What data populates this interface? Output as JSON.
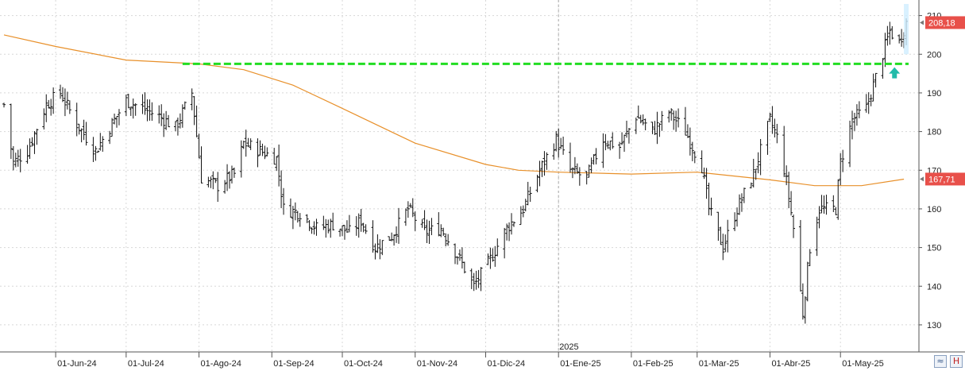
{
  "chart_data": {
    "type": "ohlc",
    "title": "",
    "xlabel": "",
    "ylabel": "",
    "ylim": [
      123,
      213
    ],
    "yticks": [
      130,
      140,
      150,
      160,
      170,
      180,
      190,
      200,
      210
    ],
    "month_ticks": [
      {
        "label": "01-Jun-24",
        "date": "2024-06-01"
      },
      {
        "label": "01-Jul-24",
        "date": "2024-07-01"
      },
      {
        "label": "01-Ago-24",
        "date": "2024-08-01"
      },
      {
        "label": "01-Sep-24",
        "date": "2024-09-01"
      },
      {
        "label": "01-Oct-24",
        "date": "2024-10-01"
      },
      {
        "label": "01-Nov-24",
        "date": "2024-11-01"
      },
      {
        "label": "01-Dic-24",
        "date": "2024-12-01"
      },
      {
        "label": "01-Ene-25",
        "date": "2025-01-01"
      },
      {
        "label": "01-Feb-25",
        "date": "2025-02-01"
      },
      {
        "label": "01-Mar-25",
        "date": "2025-03-01"
      },
      {
        "label": "01-Abr-25",
        "date": "2025-04-01"
      },
      {
        "label": "01-May-25",
        "date": "2025-05-01"
      }
    ],
    "year_marker": {
      "label": "2025",
      "date": "2025-01-01"
    },
    "x_range": [
      "2024-05-10",
      "2025-05-30"
    ],
    "last_price": {
      "label": "208,18",
      "value": 208.18,
      "color": "#e8504a"
    },
    "ma_last": {
      "label": "167,71",
      "value": 167.71,
      "color": "#e8504a"
    },
    "support_level": {
      "value": 197.5,
      "from": "2024-07-25",
      "to": "2025-05-30",
      "color": "#22dd22"
    },
    "arrow_up": {
      "date": "2025-05-24",
      "value": 195,
      "color": "#22bbaa"
    },
    "moving_average": {
      "name": "",
      "color": "#e8902a",
      "points": [
        [
          "2024-05-10",
          205
        ],
        [
          "2024-06-01",
          202
        ],
        [
          "2024-07-01",
          198.5
        ],
        [
          "2024-08-01",
          197.5
        ],
        [
          "2024-08-20",
          196
        ],
        [
          "2024-09-10",
          192
        ],
        [
          "2024-10-01",
          186
        ],
        [
          "2024-11-01",
          177
        ],
        [
          "2024-12-01",
          171.5
        ],
        [
          "2024-12-15",
          170
        ],
        [
          "2025-01-01",
          169.5
        ],
        [
          "2025-02-01",
          169
        ],
        [
          "2025-03-01",
          169.5
        ],
        [
          "2025-04-01",
          167.5
        ],
        [
          "2025-04-20",
          166
        ],
        [
          "2025-05-10",
          166
        ],
        [
          "2025-05-28",
          167.7
        ]
      ]
    },
    "price_path": [
      [
        "2024-05-10",
        187
      ],
      [
        "2024-05-14",
        172
      ],
      [
        "2024-05-20",
        175
      ],
      [
        "2024-05-28",
        187
      ],
      [
        "2024-06-03",
        190
      ],
      [
        "2024-06-10",
        182
      ],
      [
        "2024-06-18",
        175
      ],
      [
        "2024-06-26",
        183
      ],
      [
        "2024-07-01",
        188
      ],
      [
        "2024-07-08",
        186
      ],
      [
        "2024-07-15",
        184
      ],
      [
        "2024-07-22",
        181
      ],
      [
        "2024-07-29",
        190
      ],
      [
        "2024-08-02",
        168
      ],
      [
        "2024-08-09",
        166
      ],
      [
        "2024-08-16",
        169
      ],
      [
        "2024-08-20",
        177
      ],
      [
        "2024-08-27",
        175
      ],
      [
        "2024-09-03",
        173
      ],
      [
        "2024-09-06",
        160
      ],
      [
        "2024-09-13",
        159
      ],
      [
        "2024-09-20",
        155
      ],
      [
        "2024-09-27",
        156
      ],
      [
        "2024-10-04",
        154
      ],
      [
        "2024-10-09",
        157
      ],
      [
        "2024-10-15",
        150
      ],
      [
        "2024-10-22",
        153
      ],
      [
        "2024-10-29",
        160
      ],
      [
        "2024-11-05",
        154
      ],
      [
        "2024-11-12",
        155
      ],
      [
        "2024-11-19",
        148
      ],
      [
        "2024-11-26",
        140
      ],
      [
        "2024-12-03",
        147
      ],
      [
        "2024-12-10",
        155
      ],
      [
        "2024-12-17",
        160
      ],
      [
        "2024-12-24",
        170
      ],
      [
        "2024-12-31",
        178
      ],
      [
        "2025-01-06",
        170
      ],
      [
        "2025-01-13",
        168
      ],
      [
        "2025-01-20",
        178
      ],
      [
        "2025-01-27",
        176
      ],
      [
        "2025-02-03",
        184
      ],
      [
        "2025-02-10",
        180
      ],
      [
        "2025-02-17",
        185
      ],
      [
        "2025-02-24",
        180
      ],
      [
        "2025-03-03",
        171
      ],
      [
        "2025-03-06",
        160
      ],
      [
        "2025-03-12",
        150
      ],
      [
        "2025-03-18",
        160
      ],
      [
        "2025-03-25",
        169
      ],
      [
        "2025-04-01",
        183
      ],
      [
        "2025-04-05",
        177
      ],
      [
        "2025-04-08",
        167
      ],
      [
        "2025-04-11",
        155
      ],
      [
        "2025-04-15",
        133
      ],
      [
        "2025-04-18",
        150
      ],
      [
        "2025-04-22",
        160
      ],
      [
        "2025-04-29",
        160
      ],
      [
        "2025-05-01",
        172
      ],
      [
        "2025-05-06",
        183
      ],
      [
        "2025-05-12",
        186
      ],
      [
        "2025-05-15",
        192
      ],
      [
        "2025-05-19",
        200
      ],
      [
        "2025-05-22",
        206
      ],
      [
        "2025-05-26",
        203
      ],
      [
        "2025-05-29",
        208.18
      ]
    ]
  }
}
